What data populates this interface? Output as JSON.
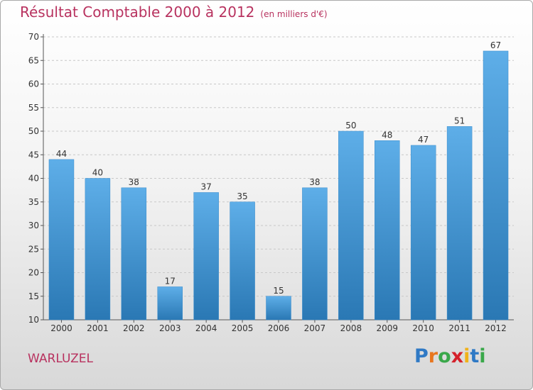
{
  "header": {
    "title": "Résultat Comptable 2000 à 2012",
    "subtitle": "(en milliers d'€)"
  },
  "location": "WARLUZEL",
  "logo": {
    "letters": [
      {
        "char": "P",
        "color": "#2f79c5"
      },
      {
        "char": "r",
        "color": "#e8761e"
      },
      {
        "char": "o",
        "color": "#3aa84a"
      },
      {
        "char": "x",
        "color": "#d4212b"
      },
      {
        "char": "i",
        "color": "#f0b21a"
      },
      {
        "char": "t",
        "color": "#2f79c5"
      },
      {
        "char": "i",
        "color": "#3aa84a"
      }
    ]
  },
  "colors": {
    "bar_light": "#5eaee8",
    "bar_dark": "#2a78b4",
    "grid": "#c8c8c8",
    "axis": "#555555",
    "title": "#b8325f"
  },
  "chart_data": {
    "type": "bar",
    "categories": [
      "2000",
      "2001",
      "2002",
      "2003",
      "2004",
      "2005",
      "2006",
      "2007",
      "2008",
      "2009",
      "2010",
      "2011",
      "2012"
    ],
    "values": [
      44,
      40,
      38,
      17,
      37,
      35,
      15,
      38,
      50,
      48,
      47,
      51,
      67
    ],
    "value_labels": [
      "44",
      "40",
      "38",
      "17",
      "37",
      "35",
      "15",
      "38",
      "50",
      "48",
      "47",
      "51",
      "67"
    ],
    "title": "Résultat Comptable 2000 à 2012",
    "xlabel": "",
    "ylabel": "",
    "ylim": [
      10,
      70
    ],
    "yticks": [
      "10",
      "15",
      "20",
      "25",
      "30",
      "35",
      "40",
      "45",
      "50",
      "55",
      "60",
      "65",
      "70"
    ],
    "grid": true,
    "legend": "none"
  }
}
